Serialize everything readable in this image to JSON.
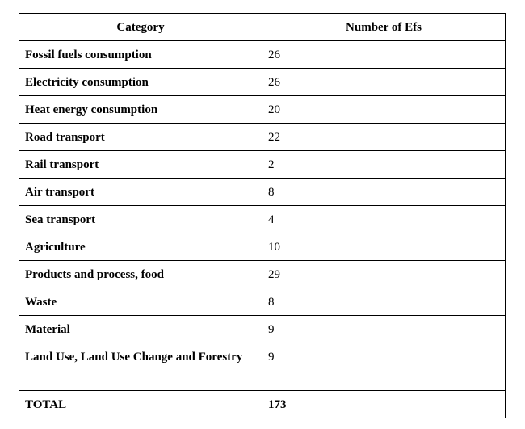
{
  "table": {
    "headers": [
      "Category",
      "Number of Efs"
    ],
    "rows": [
      {
        "category": "Fossil fuels consumption",
        "count": "26"
      },
      {
        "category": "Electricity consumption",
        "count": "26"
      },
      {
        "category": "Heat energy consumption",
        "count": "20"
      },
      {
        "category": "Road transport",
        "count": "22"
      },
      {
        "category": "Rail transport",
        "count": "2"
      },
      {
        "category": "Air transport",
        "count": "8"
      },
      {
        "category": "Sea transport",
        "count": "4"
      },
      {
        "category": "Agriculture",
        "count": "10"
      },
      {
        "category": "Products and process, food",
        "count": "29"
      },
      {
        "category": "Waste",
        "count": "8"
      },
      {
        "category": "Material",
        "count": "9"
      },
      {
        "category": "Land Use, Land Use Change and Forestry",
        "count": "9"
      }
    ],
    "total": {
      "label": "TOTAL",
      "value": "173"
    }
  }
}
